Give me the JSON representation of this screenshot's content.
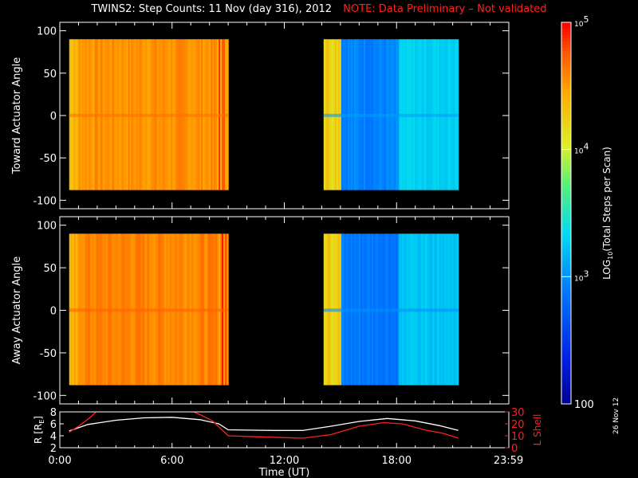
{
  "title": "TWINS2: Step Counts: 11 Nov (day 316), 2012",
  "note": "NOTE: Data Preliminary – Not validated",
  "datestamp": "26 Nov 12",
  "colors": {
    "background": "#000000",
    "axes": "#ffffff",
    "note": "#ff2020",
    "r_line": "#ffffff",
    "lshell_line": "#ff2020"
  },
  "chart_data": [
    {
      "type": "heatmap",
      "ylabel": "Toward Actuator Angle",
      "ylim": [
        -110,
        110
      ],
      "yticks": [
        -100,
        -50,
        0,
        50,
        100
      ],
      "blocks": [
        {
          "t_start": 0.5,
          "t_end": 9.0,
          "log10_level": 4.55,
          "note": "orange/yellow, high counts"
        },
        {
          "t_start": 14.1,
          "t_end": 21.3,
          "log10_level": 2.95,
          "note": "blue/cyan, lower counts"
        }
      ],
      "angle_range": [
        -88,
        90
      ]
    },
    {
      "type": "heatmap",
      "ylabel": "Away Actuator Angle",
      "ylim": [
        -110,
        110
      ],
      "yticks": [
        -100,
        -50,
        0,
        50,
        100
      ],
      "blocks": [
        {
          "t_start": 0.5,
          "t_end": 9.0,
          "log10_level": 4.6
        },
        {
          "t_start": 14.1,
          "t_end": 21.3,
          "log10_level": 2.9
        }
      ],
      "angle_range": [
        -88,
        90
      ]
    },
    {
      "type": "line",
      "xlabel": "Time (UT)",
      "xlim": [
        0,
        24
      ],
      "xticks": [
        0,
        6,
        12,
        18,
        23.983
      ],
      "xtick_labels": [
        "0:00",
        "6:00",
        "12:00",
        "18:00",
        "23:59"
      ],
      "ylabel_left": "R [R",
      "ylabel_left_sub": "E",
      "ylabel_left_tail": "]",
      "ylim_left": [
        2,
        8
      ],
      "yticks_left": [
        2,
        4,
        6,
        8
      ],
      "ylabel_right": "L Shell",
      "ylim_right": [
        0,
        30
      ],
      "yticks_right": [
        0,
        10,
        20,
        30
      ],
      "series": [
        {
          "axis": "left",
          "color": "#ffffff",
          "x": [
            0.5,
            1.5,
            3,
            4.5,
            6,
            7.5,
            8.5,
            9.0,
            10,
            11.5,
            13,
            14.5,
            16,
            17.5,
            19,
            20.3,
            21.3
          ],
          "y": [
            4.8,
            5.9,
            6.6,
            7.0,
            7.1,
            6.7,
            6.0,
            5.0,
            4.95,
            4.9,
            4.9,
            5.6,
            6.4,
            6.9,
            6.5,
            5.7,
            4.9
          ]
        },
        {
          "axis": "right",
          "color": "#ff2020",
          "x": [
            0.5,
            1.0,
            1.6,
            2.0,
            7.0,
            7.6,
            8.2,
            9.0,
            10,
            12,
            13,
            14.5,
            16,
            17.3,
            18.3,
            19.5,
            20.5,
            21.3
          ],
          "y": [
            13,
            18,
            25,
            31,
            31,
            27,
            22,
            10,
            9.5,
            8.5,
            8.0,
            11,
            18,
            21,
            20,
            15,
            12,
            8
          ]
        }
      ]
    },
    {
      "type": "colorbar",
      "label": "LOG",
      "label_sub": "10",
      "label_tail": "(Total Steps per Scan)",
      "range_log10": [
        2,
        5
      ],
      "tick_labels": [
        "100",
        "10",
        "3",
        "10",
        "4",
        "10",
        "5"
      ]
    }
  ]
}
